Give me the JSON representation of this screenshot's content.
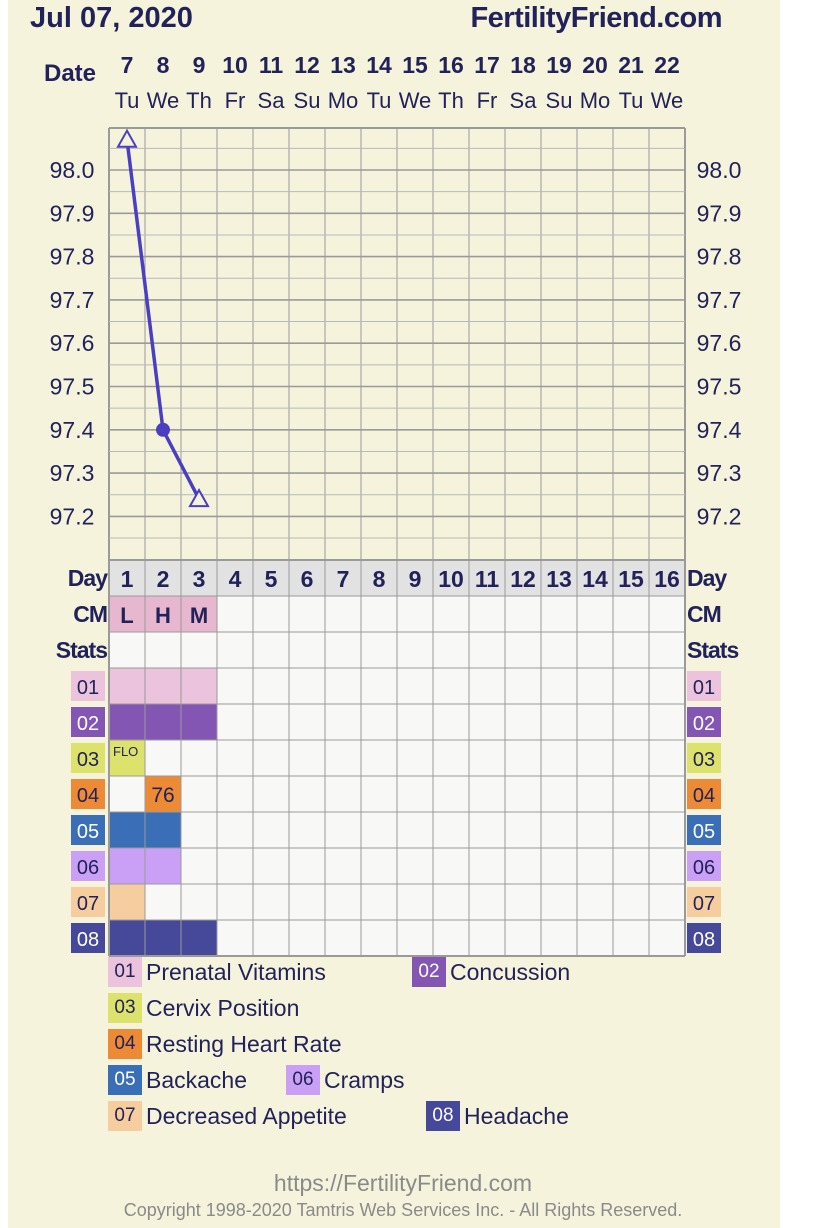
{
  "header": {
    "date": "Jul 07, 2020",
    "site": "FertilityFriend.com"
  },
  "chart_data": {
    "type": "line",
    "dates": [
      "7",
      "8",
      "9",
      "10",
      "11",
      "12",
      "13",
      "14",
      "15",
      "16",
      "17",
      "18",
      "19",
      "20",
      "21",
      "22"
    ],
    "weekdays": [
      "Tu",
      "We",
      "Th",
      "Fr",
      "Sa",
      "Su",
      "Mo",
      "Tu",
      "We",
      "Th",
      "Fr",
      "Sa",
      "Su",
      "Mo",
      "Tu",
      "We"
    ],
    "cycle_days": [
      "1",
      "2",
      "3",
      "4",
      "5",
      "6",
      "7",
      "8",
      "9",
      "10",
      "11",
      "12",
      "13",
      "14",
      "15",
      "16"
    ],
    "y_ticks": [
      "98.0",
      "97.9",
      "97.8",
      "97.7",
      "97.6",
      "97.5",
      "97.4",
      "97.3",
      "97.2"
    ],
    "ylim": [
      97.14,
      98.1
    ],
    "temperatures": [
      {
        "day": 1,
        "temp": 98.07,
        "marker": "open-triangle"
      },
      {
        "day": 2,
        "temp": 97.4,
        "marker": "dot"
      },
      {
        "day": 3,
        "temp": 97.24,
        "marker": "open-triangle"
      }
    ],
    "line_color": "#4a3fc0",
    "labels": {
      "date": "Date",
      "day": "Day",
      "cm": "CM",
      "stats": "Stats"
    },
    "cm": [
      "L",
      "H",
      "M"
    ],
    "cm_color": "#e7b7cf",
    "stat_rows": [
      {
        "code": "01",
        "color": "#ebc3dc",
        "text_color": "#22225a",
        "days": [
          1,
          2,
          3
        ],
        "values": {}
      },
      {
        "code": "02",
        "color": "#8456b4",
        "text_color": "#ffffff",
        "days": [
          1,
          2,
          3
        ],
        "values": {}
      },
      {
        "code": "03",
        "color": "#dde26c",
        "text_color": "#22225a",
        "days": [
          1
        ],
        "values": {
          "1": "FLO"
        }
      },
      {
        "code": "04",
        "color": "#ec8a35",
        "text_color": "#22225a",
        "days": [
          2
        ],
        "values": {
          "2": "76"
        }
      },
      {
        "code": "05",
        "color": "#3a6fb7",
        "text_color": "#ffffff",
        "days": [
          1,
          2
        ],
        "values": {}
      },
      {
        "code": "06",
        "color": "#c9a0f5",
        "text_color": "#22225a",
        "days": [
          1,
          2
        ],
        "values": {}
      },
      {
        "code": "07",
        "color": "#f6cd9f",
        "text_color": "#22225a",
        "days": [
          1
        ],
        "values": {}
      },
      {
        "code": "08",
        "color": "#46489a",
        "text_color": "#ffffff",
        "days": [
          1,
          2,
          3
        ],
        "values": {}
      }
    ]
  },
  "legend": [
    {
      "code": "01",
      "label": "Prenatal Vitamins"
    },
    {
      "code": "02",
      "label": "Concussion"
    },
    {
      "code": "03",
      "label": "Cervix Position"
    },
    {
      "code": "04",
      "label": "Resting Heart Rate"
    },
    {
      "code": "05",
      "label": "Backache"
    },
    {
      "code": "06",
      "label": "Cramps"
    },
    {
      "code": "07",
      "label": "Decreased Appetite"
    },
    {
      "code": "08",
      "label": "Headache"
    }
  ],
  "footer": {
    "url": "https://FertilityFriend.com",
    "copyright": "Copyright 1998-2020 Tamtris Web Services Inc. - All Rights Reserved."
  }
}
